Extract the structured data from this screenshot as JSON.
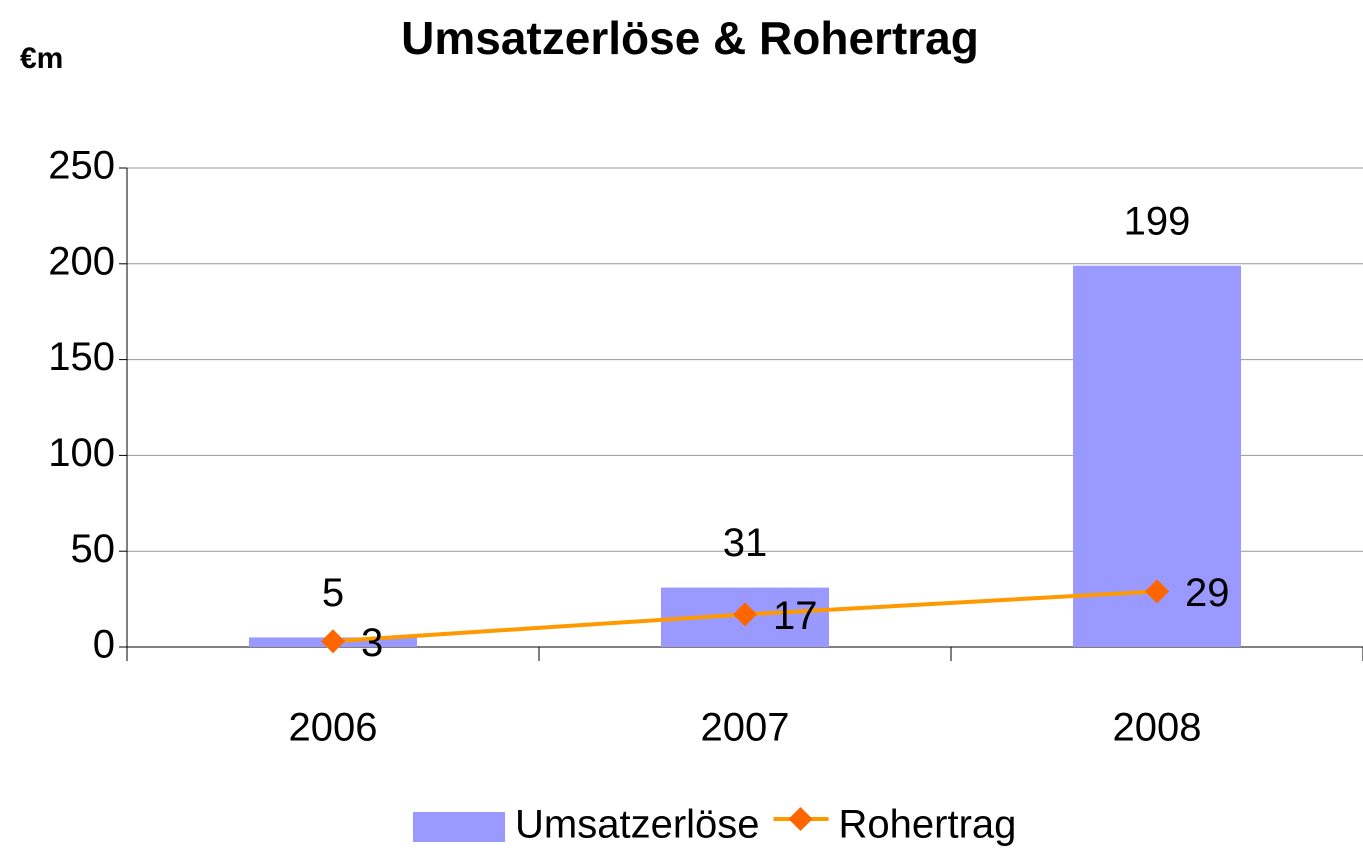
{
  "chart_data": {
    "type": "bar",
    "title": "Umsatzerlöse & Rohertrag",
    "y_label": "€m",
    "categories": [
      "2006",
      "2007",
      "2008"
    ],
    "series": [
      {
        "name": "Umsatzerlöse",
        "type": "bar",
        "color": "#9999ff",
        "values": [
          5,
          31,
          199
        ]
      },
      {
        "name": "Rohertrag",
        "type": "line",
        "color": "#ff9900",
        "marker_color": "#ff6600",
        "values": [
          3,
          17,
          29
        ]
      }
    ],
    "ylim": [
      0,
      250
    ],
    "yticks": [
      0,
      50,
      100,
      150,
      200,
      250
    ],
    "grid": true,
    "legend": "bottom"
  }
}
